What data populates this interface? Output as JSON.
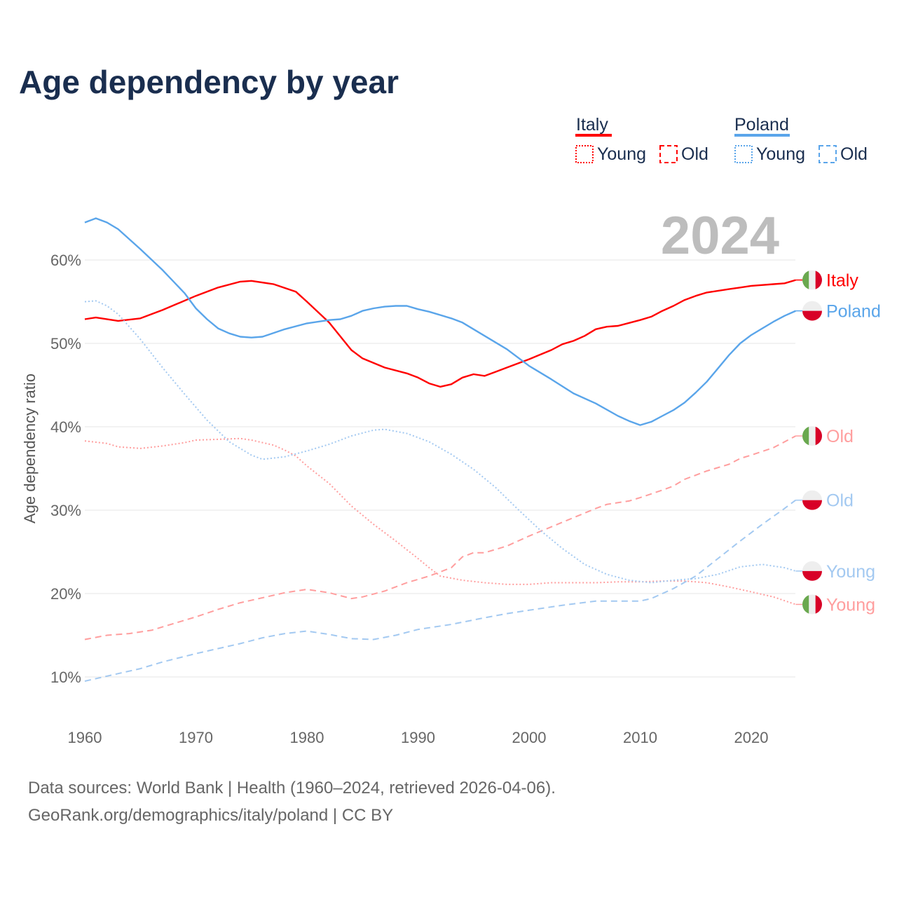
{
  "chart_data": {
    "type": "line",
    "title": "Age dependency by year",
    "ylabel": "Age dependency ratio",
    "xlabel": "",
    "year_label": "2024",
    "xlim": [
      1960,
      2024
    ],
    "ylim": [
      10,
      65
    ],
    "x_ticks": [
      "1960",
      "1970",
      "1980",
      "1990",
      "2000",
      "2010",
      "2020"
    ],
    "y_ticks": [
      "10%",
      "20%",
      "30%",
      "40%",
      "50%",
      "60%"
    ],
    "grid": true,
    "legend": {
      "placement": "top-right",
      "groups": [
        {
          "name": "Italy",
          "young": "Young",
          "old": "Old"
        },
        {
          "name": "Poland",
          "young": "Young",
          "old": "Old"
        }
      ]
    },
    "colors": {
      "italy": "#ff0000",
      "italy_light": "#ff9e9e",
      "poland": "#5aa5ea",
      "poland_light": "#a3c9f1"
    },
    "series": [
      {
        "name": "Italy",
        "group": "Italy",
        "kind": "total",
        "end_label": "Italy",
        "points": [
          [
            1960,
            52.9
          ],
          [
            1961,
            53.1
          ],
          [
            1963,
            52.7
          ],
          [
            1965,
            53.0
          ],
          [
            1967,
            54.0
          ],
          [
            1970,
            55.7
          ],
          [
            1972,
            56.7
          ],
          [
            1974,
            57.4
          ],
          [
            1975,
            57.5
          ],
          [
            1977,
            57.1
          ],
          [
            1979,
            56.2
          ],
          [
            1980,
            55.0
          ],
          [
            1982,
            52.5
          ],
          [
            1984,
            49.2
          ],
          [
            1985,
            48.2
          ],
          [
            1987,
            47.1
          ],
          [
            1989,
            46.4
          ],
          [
            1990,
            45.9
          ],
          [
            1991,
            45.2
          ],
          [
            1992,
            44.8
          ],
          [
            1993,
            45.1
          ],
          [
            1994,
            45.9
          ],
          [
            1995,
            46.3
          ],
          [
            1996,
            46.1
          ],
          [
            1997,
            46.6
          ],
          [
            1998,
            47.1
          ],
          [
            2000,
            48.1
          ],
          [
            2002,
            49.2
          ],
          [
            2003,
            49.9
          ],
          [
            2004,
            50.3
          ],
          [
            2005,
            50.9
          ],
          [
            2006,
            51.7
          ],
          [
            2007,
            52.0
          ],
          [
            2008,
            52.1
          ],
          [
            2010,
            52.8
          ],
          [
            2011,
            53.2
          ],
          [
            2012,
            53.9
          ],
          [
            2013,
            54.5
          ],
          [
            2014,
            55.2
          ],
          [
            2015,
            55.7
          ],
          [
            2016,
            56.1
          ],
          [
            2018,
            56.5
          ],
          [
            2019,
            56.7
          ],
          [
            2020,
            56.9
          ],
          [
            2022,
            57.1
          ],
          [
            2023,
            57.2
          ],
          [
            2024,
            57.6
          ]
        ]
      },
      {
        "name": "Poland",
        "group": "Poland",
        "kind": "total",
        "end_label": "Poland",
        "points": [
          [
            1960,
            64.5
          ],
          [
            1961,
            65.0
          ],
          [
            1962,
            64.5
          ],
          [
            1963,
            63.7
          ],
          [
            1965,
            61.3
          ],
          [
            1967,
            58.8
          ],
          [
            1969,
            56.0
          ],
          [
            1970,
            54.2
          ],
          [
            1971,
            52.9
          ],
          [
            1972,
            51.8
          ],
          [
            1973,
            51.2
          ],
          [
            1974,
            50.8
          ],
          [
            1975,
            50.7
          ],
          [
            1976,
            50.8
          ],
          [
            1978,
            51.7
          ],
          [
            1980,
            52.4
          ],
          [
            1982,
            52.8
          ],
          [
            1983,
            52.9
          ],
          [
            1984,
            53.3
          ],
          [
            1985,
            53.9
          ],
          [
            1986,
            54.2
          ],
          [
            1987,
            54.4
          ],
          [
            1988,
            54.5
          ],
          [
            1989,
            54.5
          ],
          [
            1990,
            54.1
          ],
          [
            1991,
            53.8
          ],
          [
            1993,
            53.0
          ],
          [
            1994,
            52.5
          ],
          [
            1996,
            50.9
          ],
          [
            1998,
            49.3
          ],
          [
            2000,
            47.3
          ],
          [
            2002,
            45.7
          ],
          [
            2004,
            44.0
          ],
          [
            2006,
            42.8
          ],
          [
            2008,
            41.3
          ],
          [
            2009,
            40.7
          ],
          [
            2010,
            40.2
          ],
          [
            2011,
            40.6
          ],
          [
            2012,
            41.3
          ],
          [
            2013,
            42.0
          ],
          [
            2014,
            42.9
          ],
          [
            2015,
            44.1
          ],
          [
            2016,
            45.4
          ],
          [
            2017,
            47.0
          ],
          [
            2018,
            48.6
          ],
          [
            2019,
            50.0
          ],
          [
            2020,
            51.0
          ],
          [
            2021,
            51.8
          ],
          [
            2022,
            52.6
          ],
          [
            2023,
            53.3
          ],
          [
            2024,
            53.9
          ]
        ]
      },
      {
        "name": "Italy Young",
        "group": "Italy",
        "kind": "young",
        "end_label": "Young",
        "points": [
          [
            1960,
            38.3
          ],
          [
            1962,
            38.0
          ],
          [
            1963,
            37.6
          ],
          [
            1965,
            37.4
          ],
          [
            1967,
            37.7
          ],
          [
            1969,
            38.1
          ],
          [
            1970,
            38.4
          ],
          [
            1972,
            38.5
          ],
          [
            1974,
            38.6
          ],
          [
            1975,
            38.4
          ],
          [
            1977,
            37.8
          ],
          [
            1978,
            37.2
          ],
          [
            1979,
            36.5
          ],
          [
            1980,
            35.3
          ],
          [
            1982,
            33.2
          ],
          [
            1984,
            30.5
          ],
          [
            1986,
            28.3
          ],
          [
            1988,
            26.3
          ],
          [
            1990,
            24.2
          ],
          [
            1991,
            23.1
          ],
          [
            1992,
            22.1
          ],
          [
            1994,
            21.6
          ],
          [
            1996,
            21.3
          ],
          [
            1998,
            21.1
          ],
          [
            2000,
            21.1
          ],
          [
            2002,
            21.3
          ],
          [
            2004,
            21.3
          ],
          [
            2006,
            21.3
          ],
          [
            2008,
            21.4
          ],
          [
            2010,
            21.4
          ],
          [
            2012,
            21.5
          ],
          [
            2014,
            21.5
          ],
          [
            2016,
            21.3
          ],
          [
            2018,
            20.8
          ],
          [
            2020,
            20.2
          ],
          [
            2022,
            19.6
          ],
          [
            2024,
            18.7
          ]
        ]
      },
      {
        "name": "Italy Old",
        "group": "Italy",
        "kind": "old",
        "end_label": "Old",
        "points": [
          [
            1960,
            14.5
          ],
          [
            1962,
            15.0
          ],
          [
            1964,
            15.2
          ],
          [
            1966,
            15.6
          ],
          [
            1968,
            16.4
          ],
          [
            1970,
            17.2
          ],
          [
            1972,
            18.1
          ],
          [
            1974,
            18.9
          ],
          [
            1976,
            19.5
          ],
          [
            1978,
            20.1
          ],
          [
            1980,
            20.5
          ],
          [
            1982,
            20.1
          ],
          [
            1984,
            19.4
          ],
          [
            1985,
            19.6
          ],
          [
            1987,
            20.3
          ],
          [
            1989,
            21.3
          ],
          [
            1991,
            22.1
          ],
          [
            1993,
            23.1
          ],
          [
            1994,
            24.4
          ],
          [
            1995,
            24.9
          ],
          [
            1996,
            24.9
          ],
          [
            1998,
            25.7
          ],
          [
            2000,
            26.9
          ],
          [
            2002,
            28.0
          ],
          [
            2004,
            29.1
          ],
          [
            2006,
            30.2
          ],
          [
            2007,
            30.7
          ],
          [
            2009,
            31.1
          ],
          [
            2010,
            31.5
          ],
          [
            2012,
            32.4
          ],
          [
            2013,
            32.9
          ],
          [
            2014,
            33.7
          ],
          [
            2016,
            34.7
          ],
          [
            2018,
            35.5
          ],
          [
            2019,
            36.2
          ],
          [
            2020,
            36.6
          ],
          [
            2022,
            37.5
          ],
          [
            2024,
            38.9
          ]
        ]
      },
      {
        "name": "Poland Young",
        "group": "Poland",
        "kind": "young",
        "end_label": "Young",
        "points": [
          [
            1960,
            55.0
          ],
          [
            1961,
            55.1
          ],
          [
            1962,
            54.5
          ],
          [
            1963,
            53.5
          ],
          [
            1965,
            50.5
          ],
          [
            1967,
            47.1
          ],
          [
            1969,
            43.9
          ],
          [
            1971,
            40.8
          ],
          [
            1973,
            38.2
          ],
          [
            1975,
            36.6
          ],
          [
            1976,
            36.1
          ],
          [
            1978,
            36.4
          ],
          [
            1980,
            37.1
          ],
          [
            1982,
            37.9
          ],
          [
            1984,
            38.9
          ],
          [
            1986,
            39.6
          ],
          [
            1987,
            39.7
          ],
          [
            1989,
            39.2
          ],
          [
            1991,
            38.2
          ],
          [
            1993,
            36.7
          ],
          [
            1995,
            34.9
          ],
          [
            1997,
            32.7
          ],
          [
            1999,
            30.1
          ],
          [
            2001,
            27.6
          ],
          [
            2003,
            25.4
          ],
          [
            2005,
            23.5
          ],
          [
            2007,
            22.3
          ],
          [
            2009,
            21.6
          ],
          [
            2011,
            21.3
          ],
          [
            2013,
            21.6
          ],
          [
            2015,
            21.8
          ],
          [
            2017,
            22.3
          ],
          [
            2019,
            23.2
          ],
          [
            2021,
            23.5
          ],
          [
            2023,
            23.1
          ],
          [
            2024,
            22.7
          ]
        ]
      },
      {
        "name": "Poland Old",
        "group": "Poland",
        "kind": "old",
        "end_label": "Old",
        "points": [
          [
            1960,
            9.5
          ],
          [
            1962,
            10.1
          ],
          [
            1965,
            11.0
          ],
          [
            1967,
            11.8
          ],
          [
            1970,
            12.8
          ],
          [
            1972,
            13.4
          ],
          [
            1974,
            14.0
          ],
          [
            1976,
            14.7
          ],
          [
            1978,
            15.2
          ],
          [
            1980,
            15.5
          ],
          [
            1982,
            15.1
          ],
          [
            1984,
            14.6
          ],
          [
            1986,
            14.5
          ],
          [
            1988,
            15.0
          ],
          [
            1990,
            15.7
          ],
          [
            1993,
            16.3
          ],
          [
            1996,
            17.1
          ],
          [
            1998,
            17.6
          ],
          [
            2000,
            18.0
          ],
          [
            2003,
            18.6
          ],
          [
            2006,
            19.1
          ],
          [
            2010,
            19.1
          ],
          [
            2011,
            19.4
          ],
          [
            2013,
            20.6
          ],
          [
            2015,
            22.1
          ],
          [
            2017,
            24.2
          ],
          [
            2019,
            26.3
          ],
          [
            2021,
            28.3
          ],
          [
            2023,
            30.2
          ],
          [
            2024,
            31.2
          ]
        ]
      }
    ]
  },
  "footer": {
    "source": "Data sources: World Bank | Health (1960–2024, retrieved 2026-04-06).",
    "credit": "GeoRank.org/demographics/italy/poland | CC BY"
  }
}
